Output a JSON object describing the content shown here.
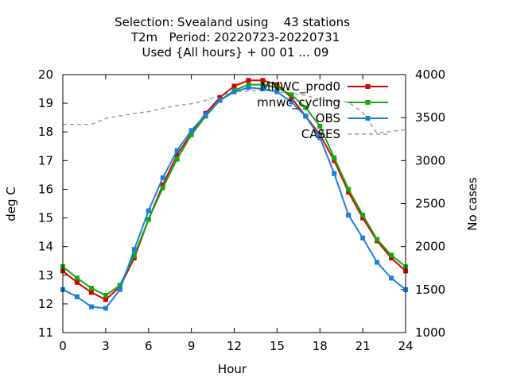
{
  "chart_data": {
    "type": "line",
    "title_lines": [
      "Selection: Svealand using    43 stations",
      "T2m   Period: 20220723-20220731",
      "Used {All hours} + 00 01 ... 09"
    ],
    "xlabel": "Hour",
    "ylabel": "deg C",
    "y2label": "No cases",
    "xlim": [
      0,
      24
    ],
    "ylim": [
      11,
      20
    ],
    "y2lim": [
      1000,
      4000
    ],
    "xticks": [
      "0",
      "3",
      "6",
      "9",
      "12",
      "15",
      "18",
      "21",
      "24"
    ],
    "yticks": [
      "11",
      "12",
      "13",
      "14",
      "15",
      "16",
      "17",
      "18",
      "19",
      "20"
    ],
    "y2ticks": [
      "1000",
      "1500",
      "2000",
      "2500",
      "3000",
      "3500",
      "4000"
    ],
    "legend_position": "top-right",
    "x": [
      0,
      1,
      2,
      3,
      4,
      5,
      6,
      7,
      8,
      9,
      10,
      11,
      12,
      13,
      14,
      15,
      16,
      17,
      18,
      19,
      20,
      21,
      22,
      23,
      24
    ],
    "series": [
      {
        "name": "MNWC_prod0",
        "color": "#dd0000",
        "values": [
          13.15,
          12.75,
          12.4,
          12.15,
          12.6,
          13.6,
          14.95,
          16.15,
          17.2,
          17.95,
          18.65,
          19.2,
          19.6,
          19.8,
          19.8,
          19.65,
          19.2,
          18.55,
          17.9,
          17.0,
          15.9,
          15.0,
          14.2,
          13.6,
          13.15
        ]
      },
      {
        "name": "mnwc_cycling",
        "color": "#11aa11",
        "values": [
          13.3,
          12.9,
          12.55,
          12.3,
          12.65,
          13.7,
          14.95,
          16.05,
          17.05,
          17.9,
          18.55,
          19.1,
          19.45,
          19.65,
          19.65,
          19.55,
          19.3,
          18.85,
          18.2,
          17.1,
          16.0,
          15.1,
          14.25,
          13.7,
          13.3
        ]
      },
      {
        "name": "OBS",
        "color": "#1a7fdd",
        "values": [
          12.5,
          12.25,
          11.9,
          11.85,
          12.5,
          13.9,
          15.25,
          16.4,
          17.35,
          18.05,
          18.6,
          19.1,
          19.4,
          19.55,
          19.5,
          19.4,
          19.05,
          18.55,
          17.8,
          16.55,
          15.1,
          14.3,
          13.45,
          12.9,
          12.5
        ]
      },
      {
        "name": "CASES",
        "color": "#a0a0a0",
        "axis": "y2",
        "values": [
          3420,
          3420,
          3420,
          3490,
          3520,
          3550,
          3570,
          3610,
          3640,
          3660,
          3700,
          3760,
          3800,
          3810,
          3820,
          3800,
          3780,
          3760,
          3710,
          3690,
          3680,
          3560,
          3320,
          3340,
          3360
        ]
      }
    ]
  }
}
